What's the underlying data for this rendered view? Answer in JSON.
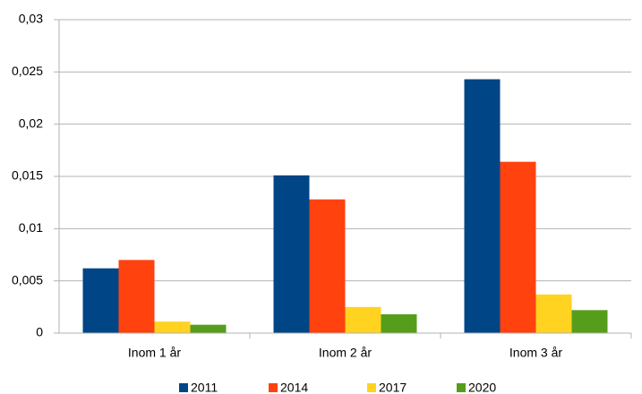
{
  "chart_data": {
    "type": "bar",
    "categories": [
      "Inom 1 år",
      "Inom 2 år",
      "Inom 3 år"
    ],
    "series": [
      {
        "name": "2011",
        "color": "#004586",
        "values": [
          0.0062,
          0.0151,
          0.0243
        ]
      },
      {
        "name": "2014",
        "color": "#ff420e",
        "values": [
          0.007,
          0.0128,
          0.0164
        ]
      },
      {
        "name": "2017",
        "color": "#ffd320",
        "values": [
          0.0011,
          0.0025,
          0.0037
        ]
      },
      {
        "name": "2020",
        "color": "#579d1c",
        "values": [
          0.0008,
          0.0018,
          0.0022
        ]
      }
    ],
    "ylim": [
      0,
      0.03
    ],
    "yticks": [
      0,
      {
        "value": 0.005,
        "label": "0,005"
      },
      {
        "value": 0.01,
        "label": "0,01"
      },
      {
        "value": 0.015,
        "label": "0,015"
      },
      {
        "value": 0.02,
        "label": "0,02"
      },
      {
        "value": 0.025,
        "label": "0,025"
      },
      {
        "value": 0.03,
        "label": "0,03"
      }
    ],
    "grid": true,
    "legend": "bottom"
  }
}
